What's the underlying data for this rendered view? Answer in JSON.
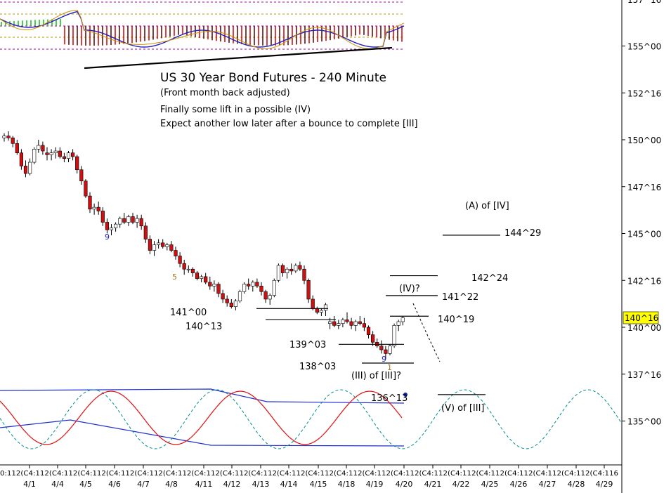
{
  "chart_data": {
    "type": "candlestick",
    "title": "US 30 Year Bond Futures - 240 Minute",
    "subtitle": "(Front month back adjusted)",
    "notes": [
      "Finally some lift in a possible (IV)",
      "Expect another low later after a bounce to complete [III]"
    ],
    "y_axis": {
      "ticks": [
        "157^16",
        "155^00",
        "152^16",
        "150^00",
        "147^16",
        "145^00",
        "142^16",
        "140^00",
        "137^16",
        "135^00"
      ],
      "tick_values": [
        157.5,
        155.0,
        152.5,
        150.0,
        147.5,
        145.0,
        142.5,
        140.0,
        137.5,
        135.0
      ],
      "range": [
        134.0,
        158.0
      ],
      "last_price_label": "140^16",
      "last_price": 140.5
    },
    "x_axis": {
      "date_labels": [
        "4/1",
        "4/4",
        "4/5",
        "4/6",
        "4/7",
        "4/8",
        "4/11",
        "4/12",
        "4/13",
        "4/14",
        "4/15",
        "4/18",
        "4/19",
        "4/20",
        "4/21",
        "4/22",
        "4/25",
        "4/26",
        "4/27",
        "4/28",
        "4/29"
      ],
      "hour_label_strip": "0:112(C4:112(C4:112(C4:112(C4:112(C4:112(C4:112(C4:112(C4:112(C4:112(C4:112(C4:112(C4:112(C4:112(C4:112(C4:112(C4:112(C4:112(C4:112(C4:112(C4:112(C4:116"
    },
    "candles": [
      [
        150.1,
        150.35,
        149.9,
        150.2
      ],
      [
        150.2,
        150.45,
        149.95,
        150.1
      ],
      [
        150.1,
        150.2,
        149.6,
        149.8
      ],
      [
        149.8,
        150.0,
        149.2,
        149.3
      ],
      [
        149.3,
        149.5,
        148.4,
        148.6
      ],
      [
        148.6,
        148.9,
        148.0,
        148.2
      ],
      [
        148.2,
        149.0,
        148.1,
        148.8
      ],
      [
        148.8,
        149.6,
        148.7,
        149.5
      ],
      [
        149.5,
        150.0,
        149.3,
        149.7
      ],
      [
        149.7,
        149.9,
        149.2,
        149.4
      ],
      [
        149.3,
        149.6,
        148.9,
        149.2
      ],
      [
        149.2,
        149.5,
        148.9,
        149.3
      ],
      [
        149.3,
        149.6,
        149.0,
        149.4
      ],
      [
        149.4,
        149.6,
        149.0,
        149.1
      ],
      [
        149.1,
        149.3,
        148.8,
        149.0
      ],
      [
        149.0,
        149.4,
        148.8,
        149.3
      ],
      [
        149.3,
        149.5,
        148.9,
        149.1
      ],
      [
        149.1,
        149.2,
        148.2,
        148.4
      ],
      [
        148.4,
        148.6,
        147.6,
        147.8
      ],
      [
        147.8,
        147.9,
        146.9,
        147.0
      ],
      [
        147.0,
        147.2,
        146.1,
        146.3
      ],
      [
        146.3,
        146.6,
        146.0,
        146.4
      ],
      [
        146.4,
        146.7,
        146.0,
        146.2
      ],
      [
        146.2,
        146.4,
        145.4,
        145.6
      ],
      [
        145.6,
        145.8,
        145.0,
        145.2
      ],
      [
        145.2,
        145.5,
        144.9,
        145.3
      ],
      [
        145.3,
        145.6,
        145.1,
        145.5
      ],
      [
        145.5,
        145.9,
        145.3,
        145.8
      ],
      [
        145.8,
        146.1,
        145.5,
        145.6
      ],
      [
        145.6,
        146.0,
        145.4,
        145.9
      ],
      [
        145.9,
        146.1,
        145.5,
        145.6
      ],
      [
        145.6,
        146.0,
        145.3,
        145.8
      ],
      [
        145.8,
        146.0,
        145.2,
        145.4
      ],
      [
        145.4,
        145.6,
        144.5,
        144.7
      ],
      [
        144.7,
        144.9,
        143.9,
        144.1
      ],
      [
        144.1,
        144.6,
        143.8,
        144.4
      ],
      [
        144.4,
        144.7,
        144.2,
        144.5
      ],
      [
        144.5,
        144.7,
        144.2,
        144.3
      ],
      [
        144.3,
        144.5,
        144.1,
        144.4
      ],
      [
        144.4,
        144.6,
        144.0,
        144.1
      ],
      [
        144.1,
        144.3,
        143.6,
        143.8
      ],
      [
        143.8,
        144.0,
        143.2,
        143.4
      ],
      [
        143.4,
        143.6,
        142.8,
        143.1
      ],
      [
        143.1,
        143.3,
        142.9,
        143.1
      ],
      [
        143.1,
        143.2,
        142.7,
        142.9
      ],
      [
        142.9,
        143.0,
        142.5,
        142.6
      ],
      [
        142.6,
        142.8,
        142.4,
        142.7
      ],
      [
        142.7,
        142.9,
        142.3,
        142.4
      ],
      [
        142.4,
        142.7,
        142.0,
        142.2
      ],
      [
        142.2,
        142.5,
        141.9,
        142.3
      ],
      [
        142.3,
        142.4,
        141.6,
        141.8
      ],
      [
        141.8,
        142.0,
        141.3,
        141.5
      ],
      [
        141.5,
        141.7,
        141.1,
        141.3
      ],
      [
        141.3,
        141.5,
        141.0,
        141.1
      ],
      [
        141.1,
        141.5,
        140.9,
        141.4
      ],
      [
        141.4,
        142.0,
        141.3,
        141.9
      ],
      [
        141.9,
        142.4,
        141.8,
        142.3
      ],
      [
        142.3,
        142.6,
        142.0,
        142.2
      ],
      [
        142.2,
        142.5,
        141.9,
        142.4
      ],
      [
        142.4,
        142.6,
        142.1,
        142.2
      ],
      [
        142.2,
        142.4,
        141.7,
        141.9
      ],
      [
        141.9,
        142.0,
        141.3,
        141.5
      ],
      [
        141.5,
        141.8,
        141.2,
        141.7
      ],
      [
        141.7,
        142.6,
        141.6,
        142.5
      ],
      [
        142.5,
        143.4,
        142.4,
        143.3
      ],
      [
        143.3,
        143.4,
        142.7,
        142.9
      ],
      [
        142.9,
        143.2,
        142.6,
        143.1
      ],
      [
        143.1,
        143.4,
        142.8,
        143.0
      ],
      [
        143.0,
        143.4,
        142.9,
        143.3
      ],
      [
        143.3,
        143.5,
        143.0,
        143.1
      ],
      [
        143.1,
        143.3,
        142.3,
        142.5
      ],
      [
        142.5,
        142.6,
        141.3,
        141.5
      ],
      [
        141.5,
        141.7,
        140.9,
        141.0
      ],
      [
        141.0,
        141.1,
        140.7,
        140.8
      ],
      [
        140.8,
        141.0,
        140.6,
        140.9
      ],
      [
        140.9,
        141.3,
        140.6,
        141.2
      ],
      [
        140.2,
        140.5,
        139.9,
        140.3
      ],
      [
        140.3,
        140.6,
        140.0,
        140.1
      ],
      [
        140.1,
        140.4,
        139.9,
        140.2
      ],
      [
        140.2,
        140.5,
        140.0,
        140.4
      ],
      [
        140.4,
        140.8,
        140.2,
        140.3
      ],
      [
        140.3,
        140.5,
        139.9,
        140.1
      ],
      [
        140.1,
        140.4,
        139.8,
        140.3
      ],
      [
        140.3,
        140.6,
        140.1,
        140.2
      ],
      [
        140.2,
        140.5,
        139.8,
        140.0
      ],
      [
        140.0,
        140.1,
        139.4,
        139.6
      ],
      [
        139.6,
        139.8,
        139.0,
        139.2
      ],
      [
        139.2,
        139.4,
        138.9,
        139.0
      ],
      [
        139.0,
        139.3,
        138.6,
        138.8
      ],
      [
        138.8,
        139.0,
        138.3,
        138.6
      ],
      [
        138.6,
        139.1,
        138.5,
        139.0
      ],
      [
        139.0,
        140.2,
        138.9,
        140.1
      ],
      [
        140.1,
        140.4,
        139.8,
        140.3
      ],
      [
        140.3,
        140.6,
        140.1,
        140.5
      ]
    ],
    "levels": [
      {
        "label": "144^29",
        "value": 144.91
      },
      {
        "label": "142^24",
        "value": 142.75
      },
      {
        "label": "141^22",
        "value": 141.69
      },
      {
        "label": "141^00",
        "value": 141.0
      },
      {
        "label": "140^19",
        "value": 140.59
      },
      {
        "label": "140^13",
        "value": 140.41
      },
      {
        "label": "139^03",
        "value": 139.09
      },
      {
        "label": "138^03",
        "value": 138.09
      },
      {
        "label": "136^13",
        "value": 136.41
      }
    ],
    "wave_labels": [
      "(A) of [IV]",
      "(IV)?",
      "(III) of [III]?",
      "(V) of [III]"
    ],
    "count_labels": [
      "9",
      "5",
      "9",
      "1"
    ],
    "upper_panel": "histogram oscillator (red/green bars) with signal lines",
    "lower_panel": "oscillator with cyclic projection (dashed)"
  }
}
